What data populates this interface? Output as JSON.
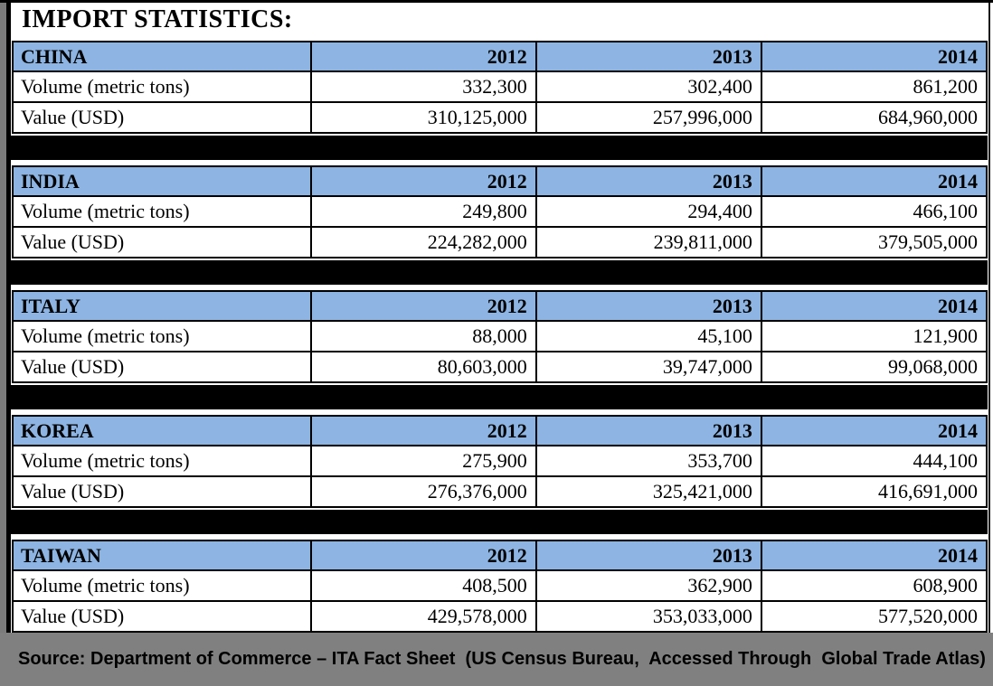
{
  "title": "IMPORT STATISTICS:",
  "years": [
    "2012",
    "2013",
    "2014"
  ],
  "row_labels": {
    "volume": "Volume (metric tons)",
    "value": "Value (USD)"
  },
  "sections": [
    {
      "country": "CHINA",
      "volume": [
        "332,300",
        "302,400",
        "861,200"
      ],
      "value": [
        "310,125,000",
        "257,996,000",
        "684,960,000"
      ]
    },
    {
      "country": "INDIA",
      "volume": [
        "249,800",
        "294,400",
        "466,100"
      ],
      "value": [
        "224,282,000",
        "239,811,000",
        "379,505,000"
      ]
    },
    {
      "country": "ITALY",
      "volume": [
        "88,000",
        "45,100",
        "121,900"
      ],
      "value": [
        "80,603,000",
        "39,747,000",
        "99,068,000"
      ]
    },
    {
      "country": "KOREA",
      "volume": [
        "275,900",
        "353,700",
        "444,100"
      ],
      "value": [
        "276,376,000",
        "325,421,000",
        "416,691,000"
      ]
    },
    {
      "country": "TAIWAN",
      "volume": [
        "408,500",
        "362,900",
        "608,900"
      ],
      "value": [
        "429,578,000",
        "353,033,000",
        "577,520,000"
      ]
    }
  ],
  "footer": {
    "source": "Source: Department of Commerce – ITA Fact Sheet  (US Census Bureau,  Accessed Through  Global Trade Atlas)"
  },
  "colors": {
    "header_blue": "#8DB4E2",
    "footer_gray": "#808080",
    "separator_black": "#000000",
    "border_black": "#000000"
  }
}
